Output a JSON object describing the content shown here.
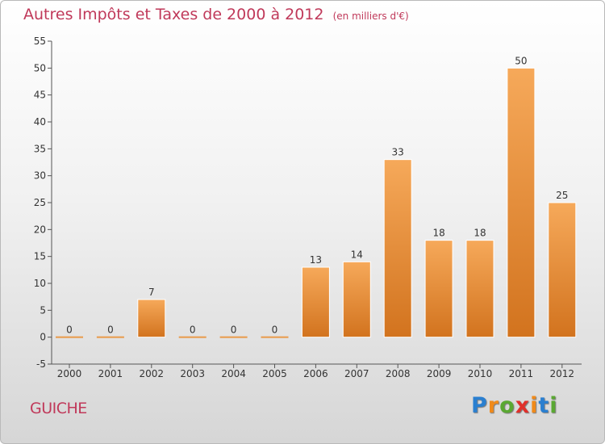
{
  "title": "Autres Impôts et Taxes de 2000 à 2012",
  "subtitle": "(en milliers d'€)",
  "commune": "GUICHE",
  "logo": {
    "text": "Proxiti",
    "letters": [
      "P",
      "r",
      "o",
      "x",
      "i",
      "t",
      "i"
    ],
    "colors": [
      "#2a7fd0",
      "#f08a1a",
      "#5aa832",
      "#e0302b",
      "#f08a1a",
      "#2a7fd0",
      "#5aa832"
    ]
  },
  "colors": {
    "bar_light": "#f6a95a",
    "bar_dark": "#d2731e",
    "title": "#c0395a"
  },
  "chart_data": {
    "type": "bar",
    "title": "Autres Impôts et Taxes de 2000 à 2012",
    "subtitle": "(en milliers d'€)",
    "xlabel": "",
    "ylabel": "",
    "categories": [
      "2000",
      "2001",
      "2002",
      "2003",
      "2004",
      "2005",
      "2006",
      "2007",
      "2008",
      "2009",
      "2010",
      "2011",
      "2012"
    ],
    "values": [
      0,
      0,
      7,
      0,
      0,
      0,
      13,
      14,
      33,
      18,
      18,
      50,
      25
    ],
    "data_labels": [
      "0",
      "0",
      "7",
      "0",
      "0",
      "0",
      "13",
      "14",
      "33",
      "18",
      "18",
      "50",
      "25"
    ],
    "ylim": [
      -5,
      55
    ],
    "yticks": [
      -5,
      0,
      5,
      10,
      15,
      20,
      25,
      30,
      35,
      40,
      45,
      50,
      55
    ],
    "grid": false
  }
}
